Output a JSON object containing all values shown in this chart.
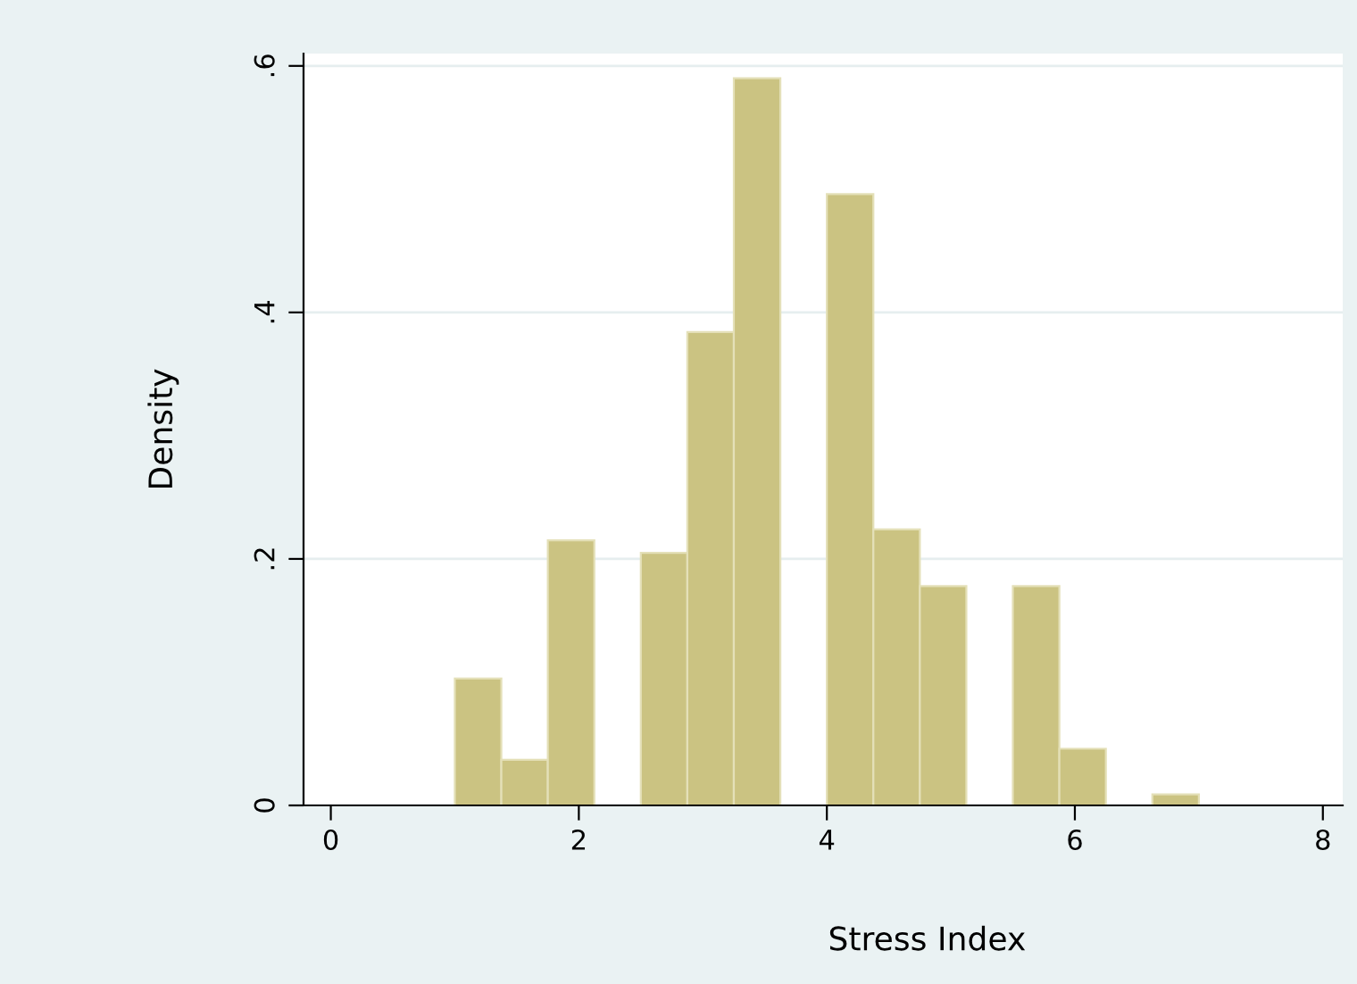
{
  "chart_data": {
    "type": "histogram",
    "xlabel": "Stress Index",
    "ylabel": "Density",
    "bins": [
      1,
      1.375,
      1.75,
      2.125,
      2.5,
      2.875,
      3.25,
      3.625,
      4,
      4.375,
      4.75,
      5.125,
      5.5,
      5.875,
      6.25,
      6.625,
      7
    ],
    "values": [
      0.103,
      0.037,
      0.215,
      0,
      0.205,
      0.384,
      0.59,
      0,
      0.496,
      0.224,
      0.178,
      0,
      0.178,
      0.046,
      0,
      0.009
    ],
    "color": "#cbc382",
    "xlim": [
      -0.22,
      8.16
    ],
    "ylim": [
      0,
      0.61
    ],
    "xticks": [
      0,
      2,
      4,
      6,
      8
    ],
    "yticks": [
      0,
      {
        "value": 0.2,
        "label": ".2"
      },
      {
        "value": 0.4,
        "label": ".4"
      },
      {
        "value": 0.6,
        "label": ".6"
      }
    ],
    "grid": "y",
    "legend": false
  }
}
